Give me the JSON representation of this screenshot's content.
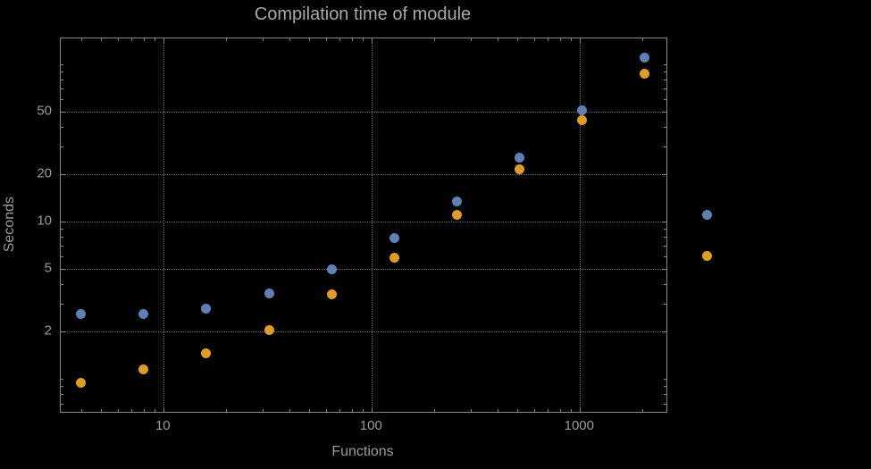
{
  "colors": {
    "background": "#000000",
    "frame": "#878787",
    "grid": "#6e6e6e",
    "text": "#9b9b9b",
    "title_text": "#a9a9a9",
    "series_blue": "#5e81b5",
    "series_orange": "#e19c24"
  },
  "chart_data": {
    "type": "scatter",
    "title": "Compilation time of module",
    "xlabel": "Functions",
    "ylabel": "Seconds",
    "xscale": "log",
    "yscale": "log",
    "grid": true,
    "xlim": [
      3.2,
      2600
    ],
    "ylim": [
      0.62,
      146
    ],
    "xticks": [
      10,
      100,
      1000
    ],
    "yticks": [
      2,
      5,
      10,
      20,
      50
    ],
    "x": [
      4,
      8,
      16,
      32,
      64,
      128,
      256,
      512,
      1024,
      2048,
      4096
    ],
    "series": [
      {
        "name": "blue",
        "color": "#5e81b5",
        "values": [
          2.6,
          2.6,
          2.8,
          3.5,
          5.0,
          7.9,
          13.5,
          25.5,
          51,
          110,
          11
        ]
      },
      {
        "name": "orange",
        "color": "#e19c24",
        "values": [
          0.95,
          1.15,
          1.45,
          2.05,
          3.45,
          5.9,
          11,
          21.5,
          44,
          87,
          6.1
        ]
      }
    ]
  }
}
